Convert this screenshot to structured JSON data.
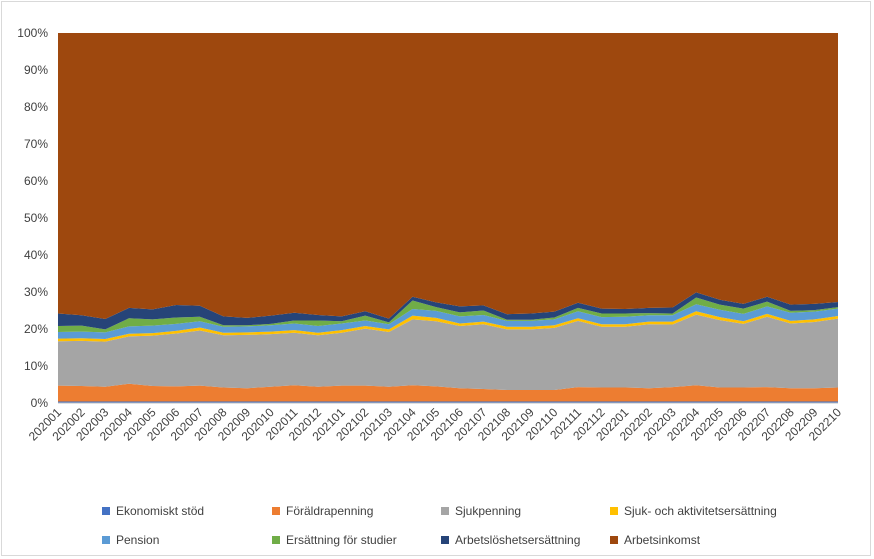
{
  "chart_data": {
    "type": "area",
    "stacked": true,
    "percent": true,
    "x": [
      "202001",
      "202002",
      "202003",
      "202004",
      "202005",
      "202006",
      "202007",
      "202008",
      "202009",
      "202010",
      "202011",
      "202012",
      "202101",
      "202102",
      "202103",
      "202104",
      "202105",
      "202106",
      "202107",
      "202108",
      "202109",
      "202110",
      "202111",
      "202112",
      "202201",
      "202202",
      "202203",
      "202204",
      "202205",
      "202206",
      "202207",
      "202208",
      "202209",
      "202210"
    ],
    "y_ticks": [
      "0%",
      "10%",
      "20%",
      "30%",
      "40%",
      "50%",
      "60%",
      "70%",
      "80%",
      "90%",
      "100%"
    ],
    "ylim": [
      0,
      100
    ],
    "series": [
      {
        "name": "Ekonomiskt stöd",
        "color": "#4472c4",
        "values": [
          0.4,
          0.4,
          0.4,
          0.4,
          0.4,
          0.4,
          0.4,
          0.4,
          0.4,
          0.4,
          0.4,
          0.4,
          0.4,
          0.4,
          0.4,
          0.4,
          0.4,
          0.4,
          0.4,
          0.4,
          0.4,
          0.4,
          0.4,
          0.4,
          0.4,
          0.4,
          0.4,
          0.4,
          0.4,
          0.4,
          0.4,
          0.4,
          0.4,
          0.4
        ]
      },
      {
        "name": "Föräldrapenning",
        "color": "#ed7d31",
        "values": [
          4.3,
          4.2,
          4.0,
          4.8,
          4.2,
          4.1,
          4.3,
          3.8,
          3.6,
          4.0,
          4.4,
          4.0,
          4.3,
          4.3,
          4.0,
          4.4,
          4.1,
          3.6,
          3.4,
          3.1,
          3.1,
          3.1,
          3.9,
          3.8,
          3.8,
          3.6,
          3.9,
          4.4,
          3.8,
          3.8,
          3.9,
          3.6,
          3.6,
          3.8
        ]
      },
      {
        "name": "Sjukpenning",
        "color": "#a5a5a5",
        "values": [
          12.0,
          12.2,
          12.2,
          12.8,
          13.6,
          14.3,
          14.9,
          14.1,
          14.4,
          14.2,
          14.2,
          13.9,
          14.3,
          15.4,
          14.8,
          17.8,
          17.6,
          16.8,
          17.5,
          16.4,
          16.4,
          16.8,
          17.9,
          16.4,
          16.4,
          17.3,
          16.9,
          19.1,
          18.2,
          17.2,
          19.0,
          17.5,
          17.9,
          18.6
        ]
      },
      {
        "name": "Sjuk- och aktivitetsersättning",
        "color": "#ffc000",
        "values": [
          0.7,
          0.7,
          0.7,
          0.7,
          0.7,
          0.7,
          0.8,
          0.7,
          0.7,
          0.7,
          0.7,
          0.7,
          0.7,
          0.7,
          0.7,
          1.0,
          0.9,
          0.7,
          0.7,
          0.7,
          0.7,
          0.7,
          0.7,
          0.7,
          0.7,
          0.7,
          0.8,
          0.9,
          0.8,
          0.7,
          0.8,
          0.7,
          0.7,
          0.7
        ]
      },
      {
        "name": "Pension",
        "color": "#5b9bd5",
        "values": [
          1.8,
          1.8,
          1.8,
          2.0,
          2.0,
          1.9,
          1.7,
          1.6,
          1.6,
          1.7,
          1.8,
          1.8,
          1.8,
          1.5,
          1.4,
          1.8,
          1.9,
          1.9,
          1.8,
          1.6,
          1.6,
          1.6,
          1.9,
          1.9,
          2.0,
          1.7,
          1.7,
          1.9,
          2.0,
          2.0,
          2.0,
          2.2,
          2.1,
          2.0
        ]
      },
      {
        "name": "Ersättning för studier",
        "color": "#70ad47",
        "values": [
          1.6,
          1.6,
          0.8,
          2.2,
          1.7,
          1.7,
          1.2,
          0.4,
          0.3,
          0.4,
          0.8,
          1.5,
          0.6,
          1.3,
          0.5,
          2.3,
          1.0,
          1.1,
          1.2,
          0.3,
          0.3,
          0.5,
          0.9,
          1.0,
          0.9,
          0.6,
          0.5,
          1.8,
          1.4,
          1.4,
          1.3,
          0.5,
          0.4,
          0.4
        ]
      },
      {
        "name": "Arbetslöshetsersättning",
        "color": "#264478",
        "values": [
          3.4,
          2.8,
          2.8,
          2.8,
          2.7,
          3.4,
          3.0,
          2.4,
          2.0,
          2.2,
          2.1,
          1.5,
          1.3,
          1.2,
          1.0,
          1.0,
          1.3,
          1.6,
          1.4,
          1.5,
          1.7,
          1.6,
          1.4,
          1.3,
          1.2,
          1.4,
          1.6,
          1.4,
          1.3,
          1.3,
          1.3,
          1.7,
          1.7,
          1.4
        ]
      },
      {
        "name": "Arbetsinkomst",
        "color": "#9e480e",
        "values": [
          75.8,
          76.3,
          77.3,
          74.3,
          74.7,
          73.5,
          73.7,
          76.6,
          77.0,
          76.4,
          75.6,
          76.2,
          76.6,
          75.2,
          77.2,
          71.3,
          72.8,
          73.9,
          73.6,
          76.0,
          75.8,
          75.3,
          72.9,
          74.5,
          74.6,
          74.3,
          74.2,
          70.1,
          72.1,
          73.2,
          71.3,
          73.4,
          73.2,
          72.7
        ]
      }
    ],
    "legend_position": "bottom",
    "grid": false
  }
}
